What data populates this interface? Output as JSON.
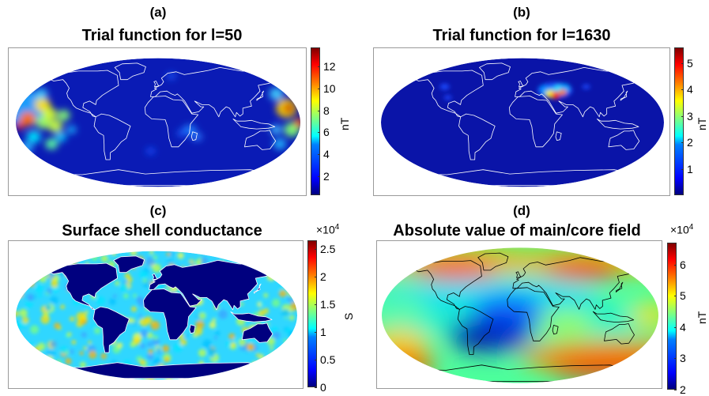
{
  "panels": [
    {
      "id": "a",
      "label": "(a)",
      "title": "Trial function for l=50",
      "colorbar": {
        "unit": "nT",
        "multiplier": "",
        "ticks": [
          "12",
          "10",
          "8",
          "6",
          "4",
          "2"
        ],
        "tick_values": [
          12,
          10,
          8,
          6,
          4,
          2
        ],
        "range": [
          0.3,
          13.7
        ],
        "colormap": "jet"
      },
      "coastline_color": "#ffffff"
    },
    {
      "id": "b",
      "label": "(b)",
      "title": "Trial function for l=1630",
      "colorbar": {
        "unit": "nT",
        "multiplier": "",
        "ticks": [
          "5",
          "4",
          "3",
          "2",
          "1"
        ],
        "tick_values": [
          5,
          4,
          3,
          2,
          1
        ],
        "range": [
          0.0,
          5.6
        ],
        "colormap": "jet"
      },
      "coastline_color": "#ffffff"
    },
    {
      "id": "c",
      "label": "(c)",
      "title": "Surface shell conductance",
      "colorbar": {
        "unit": "S",
        "multiplier": "×10",
        "multiplier_exp": "4",
        "ticks": [
          "2.5",
          "2",
          "1.5",
          "1",
          "0.5",
          "0"
        ],
        "tick_values": [
          2.5,
          2,
          1.5,
          1,
          0.5,
          0
        ],
        "range": [
          0,
          2.65
        ],
        "colormap": "jet"
      },
      "coastline_color": "#ffffff"
    },
    {
      "id": "d",
      "label": "(d)",
      "title": "Absolute value of main/core field",
      "colorbar": {
        "unit": "nT",
        "multiplier": "×10",
        "multiplier_exp": "4",
        "ticks": [
          "6",
          "5",
          "4",
          "3",
          "2"
        ],
        "tick_values": [
          6,
          5,
          4,
          3,
          2
        ],
        "range": [
          2,
          6.7
        ],
        "colormap": "jet"
      },
      "coastline_color": "#000000"
    }
  ],
  "colors": {
    "ocean_low": "#00007f",
    "land_mask_c": "#00007f"
  }
}
